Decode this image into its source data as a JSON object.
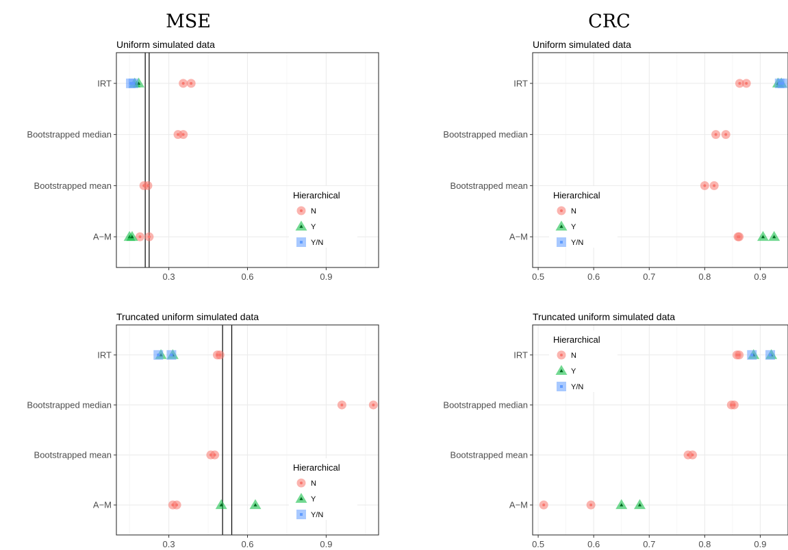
{
  "column_titles": [
    "MSE",
    "CRC"
  ],
  "legend": {
    "title": "Hierarchical",
    "entries": [
      {
        "label": "N",
        "shape": "circle",
        "color": "#f8766d"
      },
      {
        "label": "Y",
        "shape": "triangle",
        "color": "#00ba38"
      },
      {
        "label": "Y/N",
        "shape": "square",
        "color": "#619cff"
      }
    ]
  },
  "chart_data": [
    {
      "type": "scatter",
      "title": "Uniform simulated data",
      "categories": [
        "IRT",
        "Bootstrapped median",
        "Bootstrapped mean",
        "A−M"
      ],
      "xlim": [
        0.1,
        1.1
      ],
      "xticks": [
        0.3,
        0.6,
        0.9
      ],
      "xtick_labels": [
        "0.3",
        "0.6",
        "0.9"
      ],
      "vlines": [
        0.21,
        0.225
      ],
      "legend_position": "bottom-right",
      "grid": true,
      "series": [
        {
          "name": "N",
          "points": [
            [
              "IRT",
              0.355
            ],
            [
              "IRT",
              0.385
            ],
            [
              "Bootstrapped median",
              0.335
            ],
            [
              "Bootstrapped median",
              0.355
            ],
            [
              "Bootstrapped mean",
              0.205
            ],
            [
              "Bootstrapped mean",
              0.22
            ],
            [
              "A−M",
              0.19
            ],
            [
              "A−M",
              0.225
            ]
          ]
        },
        {
          "name": "Y",
          "points": [
            [
              "IRT",
              0.17
            ],
            [
              "IRT",
              0.185
            ],
            [
              "A−M",
              0.15
            ],
            [
              "A−M",
              0.16
            ]
          ]
        },
        {
          "name": "Y/N",
          "points": [
            [
              "IRT",
              0.155
            ],
            [
              "IRT",
              0.165
            ]
          ]
        }
      ]
    },
    {
      "type": "scatter",
      "title": "Uniform simulated data",
      "categories": [
        "IRT",
        "Bootstrapped median",
        "Bootstrapped mean",
        "A−M"
      ],
      "xlim": [
        0.49,
        0.95
      ],
      "xticks": [
        0.5,
        0.6,
        0.7,
        0.8,
        0.9
      ],
      "xtick_labels": [
        "0.5",
        "0.6",
        "0.7",
        "0.8",
        "0.9"
      ],
      "vlines": [],
      "legend_position": "bottom-left",
      "grid": true,
      "series": [
        {
          "name": "N",
          "points": [
            [
              "IRT",
              0.863
            ],
            [
              "IRT",
              0.875
            ],
            [
              "Bootstrapped median",
              0.82
            ],
            [
              "Bootstrapped median",
              0.838
            ],
            [
              "Bootstrapped mean",
              0.8
            ],
            [
              "Bootstrapped mean",
              0.817
            ],
            [
              "A−M",
              0.86
            ],
            [
              "A−M",
              0.862
            ]
          ]
        },
        {
          "name": "Y",
          "points": [
            [
              "IRT",
              0.932
            ],
            [
              "IRT",
              0.938
            ],
            [
              "A−M",
              0.905
            ],
            [
              "A−M",
              0.925
            ]
          ]
        },
        {
          "name": "Y/N",
          "points": [
            [
              "IRT",
              0.935
            ],
            [
              "IRT",
              0.94
            ]
          ]
        }
      ]
    },
    {
      "type": "scatter",
      "title": "Truncated uniform simulated data",
      "categories": [
        "IRT",
        "Bootstrapped median",
        "Bootstrapped mean",
        "A−M"
      ],
      "xlim": [
        0.1,
        1.1
      ],
      "xticks": [
        0.3,
        0.6,
        0.9
      ],
      "xtick_labels": [
        "0.3",
        "0.6",
        "0.9"
      ],
      "vlines": [
        0.505,
        0.54
      ],
      "legend_position": "bottom-right",
      "grid": true,
      "series": [
        {
          "name": "N",
          "points": [
            [
              "IRT",
              0.485
            ],
            [
              "IRT",
              0.495
            ],
            [
              "Bootstrapped median",
              0.96
            ],
            [
              "Bootstrapped median",
              1.08
            ],
            [
              "Bootstrapped mean",
              0.46
            ],
            [
              "Bootstrapped mean",
              0.475
            ],
            [
              "A−M",
              0.315
            ],
            [
              "A−M",
              0.33
            ]
          ]
        },
        {
          "name": "Y",
          "points": [
            [
              "IRT",
              0.27
            ],
            [
              "IRT",
              0.315
            ],
            [
              "A−M",
              0.5
            ],
            [
              "A−M",
              0.63
            ]
          ]
        },
        {
          "name": "Y/N",
          "points": [
            [
              "IRT",
              0.26
            ],
            [
              "IRT",
              0.31
            ]
          ]
        }
      ]
    },
    {
      "type": "scatter",
      "title": "Truncated uniform simulated data",
      "categories": [
        "IRT",
        "Bootstrapped median",
        "Bootstrapped mean",
        "A−M"
      ],
      "xlim": [
        0.49,
        0.95
      ],
      "xticks": [
        0.5,
        0.6,
        0.7,
        0.8,
        0.9
      ],
      "xtick_labels": [
        "0.5",
        "0.6",
        "0.7",
        "0.8",
        "0.9"
      ],
      "vlines": [],
      "legend_position": "top-left",
      "grid": true,
      "series": [
        {
          "name": "N",
          "points": [
            [
              "IRT",
              0.858
            ],
            [
              "IRT",
              0.862
            ],
            [
              "Bootstrapped median",
              0.848
            ],
            [
              "Bootstrapped median",
              0.853
            ],
            [
              "Bootstrapped mean",
              0.77
            ],
            [
              "Bootstrapped mean",
              0.778
            ],
            [
              "A−M",
              0.51
            ],
            [
              "A−M",
              0.595
            ]
          ]
        },
        {
          "name": "Y",
          "points": [
            [
              "IRT",
              0.888
            ],
            [
              "IRT",
              0.92
            ],
            [
              "A−M",
              0.65
            ],
            [
              "A−M",
              0.683
            ]
          ]
        },
        {
          "name": "Y/N",
          "points": [
            [
              "IRT",
              0.885
            ],
            [
              "IRT",
              0.918
            ]
          ]
        }
      ]
    }
  ]
}
